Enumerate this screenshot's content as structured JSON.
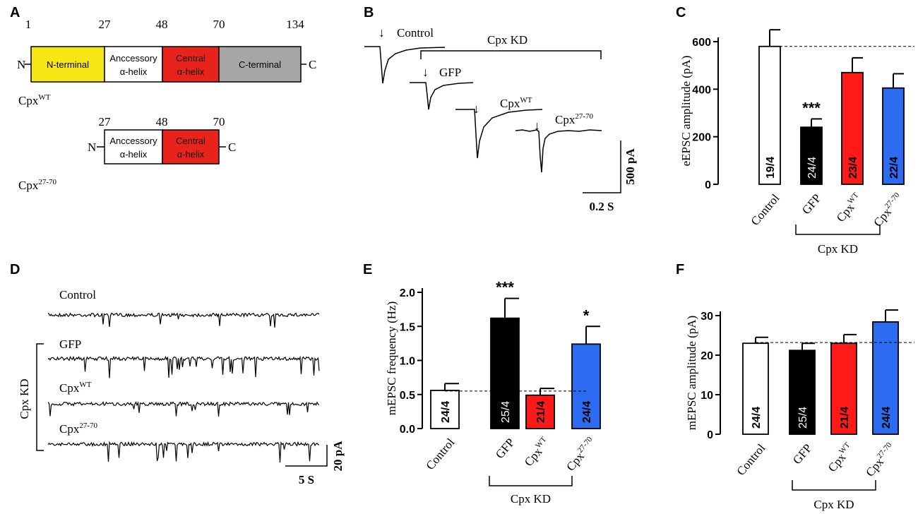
{
  "panels": {
    "a": {
      "letter": "A",
      "wt": {
        "positions": [
          "1",
          "27",
          "48",
          "70",
          "134"
        ],
        "n_end": "N",
        "c_end": "C",
        "domains": [
          {
            "lines": [
              "N-terminal"
            ],
            "color": "#f5e614"
          },
          {
            "lines": [
              "Anccessory",
              "α-helix"
            ],
            "color": "#ffffff"
          },
          {
            "lines": [
              "Central",
              "α-helix"
            ],
            "color": "#e8231c"
          },
          {
            "lines": [
              "C-terminal"
            ],
            "color": "#a6a6a6"
          }
        ],
        "label_base": "Cpx",
        "label_sup": "WT"
      },
      "trunc": {
        "positions": [
          "27",
          "48",
          "70"
        ],
        "n_end": "N",
        "c_end": "C",
        "domains": [
          {
            "lines": [
              "Anccessory",
              "α-helix"
            ],
            "color": "#ffffff"
          },
          {
            "lines": [
              "Central",
              "α-helix"
            ],
            "color": "#e8231c"
          }
        ],
        "label_base": "Cpx",
        "label_sup": "27-70"
      }
    },
    "b": {
      "letter": "B",
      "traces": [
        {
          "base": "Control",
          "sup": "",
          "arrow": "↓",
          "peak_pa": 600
        },
        {
          "base": "GFP",
          "sup": "",
          "arrow": "↓",
          "peak_pa": 240
        },
        {
          "base": "Cpx",
          "sup": "WT",
          "arrow": "↓",
          "peak_pa": 470
        },
        {
          "base": "Cpx",
          "sup": "27-70",
          "arrow": "↓",
          "peak_pa": 400
        }
      ],
      "group_label": "Cpx KD",
      "scale_y": "500 pA",
      "scale_x": "0.2 S"
    },
    "d": {
      "letter": "D",
      "traces": [
        {
          "base": "Control",
          "sup": ""
        },
        {
          "base": "GFP",
          "sup": ""
        },
        {
          "base": "Cpx",
          "sup": "WT"
        },
        {
          "base": "Cpx",
          "sup": "27-70"
        }
      ],
      "group_label": "Cpx KD",
      "scale_y": "20 pA",
      "scale_x": "5 S"
    }
  },
  "chart_data": [
    {
      "panel": "C",
      "type": "bar",
      "ylabel": "eEPSC amplitude (pA)",
      "ylim": [
        0,
        600
      ],
      "yticks": [
        "0",
        "200",
        "400",
        "600"
      ],
      "categories": [
        {
          "base": "Control",
          "sup": ""
        },
        {
          "base": "GFP",
          "sup": ""
        },
        {
          "base": "Cpx",
          "sup": "WT"
        },
        {
          "base": "Cpx",
          "sup": "27-70"
        }
      ],
      "values": [
        580,
        240,
        470,
        405
      ],
      "errors": [
        70,
        35,
        62,
        60
      ],
      "n_labels": [
        "19/4",
        "24/4",
        "23/4",
        "22/4"
      ],
      "significance": [
        "",
        "***",
        "",
        ""
      ],
      "colors": [
        "#ffffff",
        "#000000",
        "#ff1a1a",
        "#2d6bf0"
      ],
      "reference_line": 580,
      "group_label": "Cpx KD"
    },
    {
      "panel": "E",
      "type": "bar",
      "ylabel": "mEPSC frequency (Hz)",
      "ylim": [
        0,
        2.0
      ],
      "yticks": [
        "0.0",
        "0.5",
        "1.0",
        "1.5",
        "2.0"
      ],
      "categories": [
        {
          "base": "Control",
          "sup": ""
        },
        {
          "base": "GFP",
          "sup": ""
        },
        {
          "base": "Cpx",
          "sup": "WT"
        },
        {
          "base": "Cpx",
          "sup": "27-70"
        }
      ],
      "values": [
        0.56,
        1.62,
        0.49,
        1.24
      ],
      "errors": [
        0.1,
        0.29,
        0.1,
        0.26
      ],
      "n_labels": [
        "24/4",
        "25/4",
        "21/4",
        "24/4"
      ],
      "significance": [
        "",
        "***",
        "",
        "*"
      ],
      "colors": [
        "#ffffff",
        "#000000",
        "#ff1a1a",
        "#2d6bf0"
      ],
      "reference_line": 0.55,
      "group_label": "Cpx KD"
    },
    {
      "panel": "F",
      "type": "bar",
      "ylabel": "mEPSC amplitude (pA)",
      "ylim": [
        0,
        30
      ],
      "yticks": [
        "0",
        "10",
        "20",
        "30"
      ],
      "categories": [
        {
          "base": "Control",
          "sup": ""
        },
        {
          "base": "GFP",
          "sup": ""
        },
        {
          "base": "Cpx",
          "sup": "WT"
        },
        {
          "base": "Cpx",
          "sup": "27-70"
        }
      ],
      "values": [
        23,
        21.2,
        23,
        28.4
      ],
      "errors": [
        1.5,
        1.8,
        2.2,
        3.0
      ],
      "n_labels": [
        "24/4",
        "25/4",
        "21/4",
        "24/4"
      ],
      "significance": [
        "",
        "",
        "",
        ""
      ],
      "colors": [
        "#ffffff",
        "#000000",
        "#ff1a1a",
        "#2d6bf0"
      ],
      "reference_line": 23.2,
      "group_label": "Cpx KD"
    }
  ]
}
